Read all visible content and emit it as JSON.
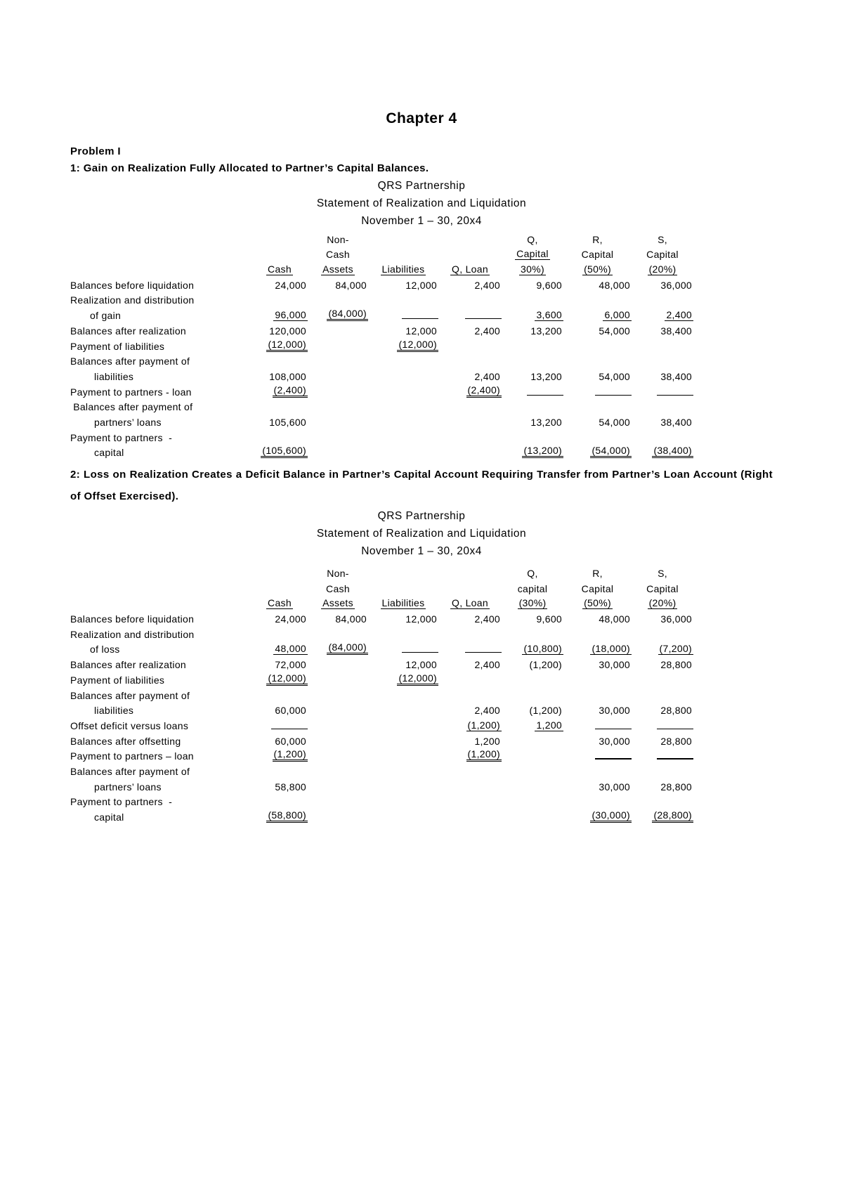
{
  "page": {
    "chapter_title": "Chapter 4",
    "problem_label": "Problem I"
  },
  "sections": [
    {
      "heading": "1: Gain on Realization Fully Allocated to Partner’s Capital Balances.",
      "org_name": "QRS Partnership",
      "statement_title": "Statement of Realization and Liquidation",
      "period": "November 1 – 30, 20x4",
      "columns": [
        {
          "lines": [
            "",
            "",
            "Cash"
          ]
        },
        {
          "lines": [
            "Non-",
            "Cash",
            "Assets"
          ]
        },
        {
          "lines": [
            "",
            "",
            "Liabilities"
          ]
        },
        {
          "lines": [
            "",
            "",
            "Q, Loan"
          ]
        },
        {
          "lines": [
            "Q,",
            "Capital",
            "30%)"
          ],
          "u2": true
        },
        {
          "lines": [
            "R,",
            "Capital",
            "(50%)"
          ]
        },
        {
          "lines": [
            "S,",
            "Capital",
            "(20%)"
          ]
        }
      ],
      "rows": [
        {
          "label": "Balances before liquidation",
          "indent": 0,
          "cells": [
            [
              "24,000",
              ""
            ],
            [
              "84,000",
              ""
            ],
            [
              "12,000",
              ""
            ],
            [
              "2,400",
              ""
            ],
            [
              "9,600",
              ""
            ],
            [
              "48,000",
              ""
            ],
            [
              "36,000",
              ""
            ]
          ]
        },
        {
          "label": "Realization and distribution",
          "indent": 0,
          "cells": [
            [
              "",
              ""
            ],
            [
              "",
              ""
            ],
            [
              "",
              ""
            ],
            [
              "",
              ""
            ],
            [
              "",
              ""
            ],
            [
              "",
              ""
            ],
            [
              "",
              ""
            ]
          ]
        },
        {
          "label": "of gain",
          "indent": 1,
          "cells": [
            [
              "96,000",
              "u"
            ],
            [
              "(84,000)",
              "uu"
            ],
            [
              "",
              "lu"
            ],
            [
              "",
              "lu"
            ],
            [
              "3,600",
              "u"
            ],
            [
              "6,000",
              "u"
            ],
            [
              "2,400",
              "u"
            ]
          ]
        },
        {
          "label": "Balances after realization",
          "indent": 0,
          "cells": [
            [
              "120,000",
              ""
            ],
            [
              "",
              ""
            ],
            [
              "12,000",
              ""
            ],
            [
              "2,400",
              ""
            ],
            [
              "13,200",
              ""
            ],
            [
              "54,000",
              ""
            ],
            [
              "38,400",
              ""
            ]
          ]
        },
        {
          "label": "Payment of liabilities",
          "indent": 0,
          "cells": [
            [
              "(12,000)",
              "uu"
            ],
            [
              "",
              ""
            ],
            [
              "(12,000)",
              "uu"
            ],
            [
              "",
              ""
            ],
            [
              "",
              ""
            ],
            [
              "",
              ""
            ],
            [
              "",
              ""
            ]
          ]
        },
        {
          "label": "Balances after payment of",
          "indent": 0,
          "cells": [
            [
              "",
              ""
            ],
            [
              "",
              ""
            ],
            [
              "",
              ""
            ],
            [
              "",
              ""
            ],
            [
              "",
              ""
            ],
            [
              "",
              ""
            ],
            [
              "",
              ""
            ]
          ]
        },
        {
          "label": "liabilities",
          "indent": 2,
          "cells": [
            [
              "108,000",
              ""
            ],
            [
              "",
              ""
            ],
            [
              "",
              ""
            ],
            [
              "2,400",
              ""
            ],
            [
              "13,200",
              ""
            ],
            [
              "54,000",
              ""
            ],
            [
              "38,400",
              ""
            ]
          ]
        },
        {
          "label": "Payment to partners - loan",
          "indent": 0,
          "cells": [
            [
              "(2,400)",
              "uu"
            ],
            [
              "",
              ""
            ],
            [
              "",
              ""
            ],
            [
              "(2,400)",
              "uu"
            ],
            [
              "",
              "lu"
            ],
            [
              "",
              "lu"
            ],
            [
              "",
              "lu"
            ]
          ]
        },
        {
          "label": " Balances after payment of",
          "indent": 0,
          "cells": [
            [
              "",
              ""
            ],
            [
              "",
              ""
            ],
            [
              "",
              ""
            ],
            [
              "",
              ""
            ],
            [
              "",
              ""
            ],
            [
              "",
              ""
            ],
            [
              "",
              ""
            ]
          ]
        },
        {
          "label": "partners’ loans",
          "indent": 2,
          "cells": [
            [
              "105,600",
              ""
            ],
            [
              "",
              ""
            ],
            [
              "",
              ""
            ],
            [
              "",
              ""
            ],
            [
              "13,200",
              ""
            ],
            [
              "54,000",
              ""
            ],
            [
              "38,400",
              ""
            ]
          ]
        },
        {
          "label": "Payment to partners  -",
          "indent": 0,
          "cells": [
            [
              "",
              ""
            ],
            [
              "",
              ""
            ],
            [
              "",
              ""
            ],
            [
              "",
              ""
            ],
            [
              "",
              ""
            ],
            [
              "",
              ""
            ],
            [
              "",
              ""
            ]
          ]
        },
        {
          "label": "capital",
          "indent": 2,
          "cells": [
            [
              "(105,600)",
              "uu"
            ],
            [
              "",
              ""
            ],
            [
              "",
              ""
            ],
            [
              "",
              ""
            ],
            [
              "(13,200)",
              "uu"
            ],
            [
              "(54,000)",
              "uu"
            ],
            [
              "(38,400)",
              "uu"
            ]
          ]
        }
      ]
    },
    {
      "heading": "2: Loss on Realization Creates a Deficit Balance in Partner’s Capital Account Requiring Transfer from Partner’s Loan Account (Right of Offset Exercised).",
      "org_name": "QRS Partnership",
      "statement_title": "Statement of Realization and Liquidation",
      "period": "November 1 – 30, 20x4",
      "columns": [
        {
          "lines": [
            "",
            "",
            "Cash"
          ]
        },
        {
          "lines": [
            "Non-",
            "Cash",
            "Assets"
          ]
        },
        {
          "lines": [
            "",
            "",
            "Liabilities"
          ]
        },
        {
          "lines": [
            "",
            "",
            "Q, Loan"
          ]
        },
        {
          "lines": [
            "Q,",
            "capital",
            "(30%)"
          ]
        },
        {
          "lines": [
            "R,",
            "Capital",
            "(50%)"
          ]
        },
        {
          "lines": [
            "S,",
            "Capital",
            "(20%)"
          ]
        }
      ],
      "rows": [
        {
          "label": "Balances before liquidation",
          "indent": 0,
          "cells": [
            [
              "24,000",
              ""
            ],
            [
              "84,000",
              ""
            ],
            [
              "12,000",
              ""
            ],
            [
              "2,400",
              ""
            ],
            [
              "9,600",
              ""
            ],
            [
              "48,000",
              ""
            ],
            [
              "36,000",
              ""
            ]
          ]
        },
        {
          "label": "Realization and distribution",
          "indent": 0,
          "cells": [
            [
              "",
              ""
            ],
            [
              "",
              ""
            ],
            [
              "",
              ""
            ],
            [
              "",
              ""
            ],
            [
              "",
              ""
            ],
            [
              "",
              ""
            ],
            [
              "",
              ""
            ]
          ]
        },
        {
          "label": "of loss",
          "indent": 1,
          "cells": [
            [
              "48,000",
              "u"
            ],
            [
              "(84,000)",
              "uu"
            ],
            [
              "",
              "lu"
            ],
            [
              "",
              "lu"
            ],
            [
              "(10,800)",
              "u"
            ],
            [
              "(18,000)",
              "u"
            ],
            [
              "(7,200)",
              "u"
            ]
          ]
        },
        {
          "label": "Balances after realization",
          "indent": 0,
          "cells": [
            [
              "72,000",
              ""
            ],
            [
              "",
              ""
            ],
            [
              "12,000",
              ""
            ],
            [
              "2,400",
              ""
            ],
            [
              "(1,200)",
              ""
            ],
            [
              "30,000",
              ""
            ],
            [
              "28,800",
              ""
            ]
          ]
        },
        {
          "label": "Payment of liabilities",
          "indent": 0,
          "cells": [
            [
              "(12,000)",
              "uu"
            ],
            [
              "",
              ""
            ],
            [
              "(12,000)",
              "uu"
            ],
            [
              "",
              ""
            ],
            [
              "",
              ""
            ],
            [
              "",
              ""
            ],
            [
              "",
              ""
            ]
          ]
        },
        {
          "label": "Balances after payment of",
          "indent": 0,
          "cells": [
            [
              "",
              ""
            ],
            [
              "",
              ""
            ],
            [
              "",
              ""
            ],
            [
              "",
              ""
            ],
            [
              "",
              ""
            ],
            [
              "",
              ""
            ],
            [
              "",
              ""
            ]
          ]
        },
        {
          "label": "liabilities",
          "indent": 2,
          "cells": [
            [
              "60,000",
              ""
            ],
            [
              "",
              ""
            ],
            [
              "",
              ""
            ],
            [
              "2,400",
              ""
            ],
            [
              "(1,200)",
              ""
            ],
            [
              "30,000",
              ""
            ],
            [
              "28,800",
              ""
            ]
          ]
        },
        {
          "label": "Offset deficit versus loans",
          "indent": 0,
          "cells": [
            [
              "",
              "lu"
            ],
            [
              "",
              ""
            ],
            [
              "",
              ""
            ],
            [
              "(1,200)",
              "u"
            ],
            [
              "1,200",
              "u"
            ],
            [
              "",
              "lu"
            ],
            [
              "",
              "lu"
            ]
          ]
        },
        {
          "label": "Balances after offsetting",
          "indent": 0,
          "cells": [
            [
              "60,000",
              ""
            ],
            [
              "",
              ""
            ],
            [
              "",
              ""
            ],
            [
              "1,200",
              ""
            ],
            [
              "",
              ""
            ],
            [
              "30,000",
              ""
            ],
            [
              "28,800",
              ""
            ]
          ]
        },
        {
          "label": "Payment to partners – loan",
          "indent": 0,
          "cells": [
            [
              "(1,200)",
              "uu"
            ],
            [
              "",
              ""
            ],
            [
              "",
              ""
            ],
            [
              "(1,200)",
              "uu"
            ],
            [
              "",
              ""
            ],
            [
              "",
              "lt"
            ],
            [
              "",
              "lt"
            ]
          ]
        },
        {
          "label": "Balances after payment of",
          "indent": 0,
          "cells": [
            [
              "",
              ""
            ],
            [
              "",
              ""
            ],
            [
              "",
              ""
            ],
            [
              "",
              ""
            ],
            [
              "",
              ""
            ],
            [
              "",
              ""
            ],
            [
              "",
              ""
            ]
          ]
        },
        {
          "label": "partners’ loans",
          "indent": 2,
          "cells": [
            [
              "58,800",
              ""
            ],
            [
              "",
              ""
            ],
            [
              "",
              ""
            ],
            [
              "",
              ""
            ],
            [
              "",
              ""
            ],
            [
              "30,000",
              ""
            ],
            [
              "28,800",
              ""
            ]
          ]
        },
        {
          "label": "Payment to partners  -",
          "indent": 0,
          "cells": [
            [
              "",
              ""
            ],
            [
              "",
              ""
            ],
            [
              "",
              ""
            ],
            [
              "",
              ""
            ],
            [
              "",
              ""
            ],
            [
              "",
              ""
            ],
            [
              "",
              ""
            ]
          ]
        },
        {
          "label": "capital",
          "indent": 2,
          "cells": [
            [
              "(58,800)",
              "uu"
            ],
            [
              "",
              ""
            ],
            [
              "",
              ""
            ],
            [
              "",
              ""
            ],
            [
              "",
              ""
            ],
            [
              "(30,000)",
              "uu"
            ],
            [
              "(28,800)",
              "uu"
            ]
          ]
        }
      ]
    }
  ]
}
